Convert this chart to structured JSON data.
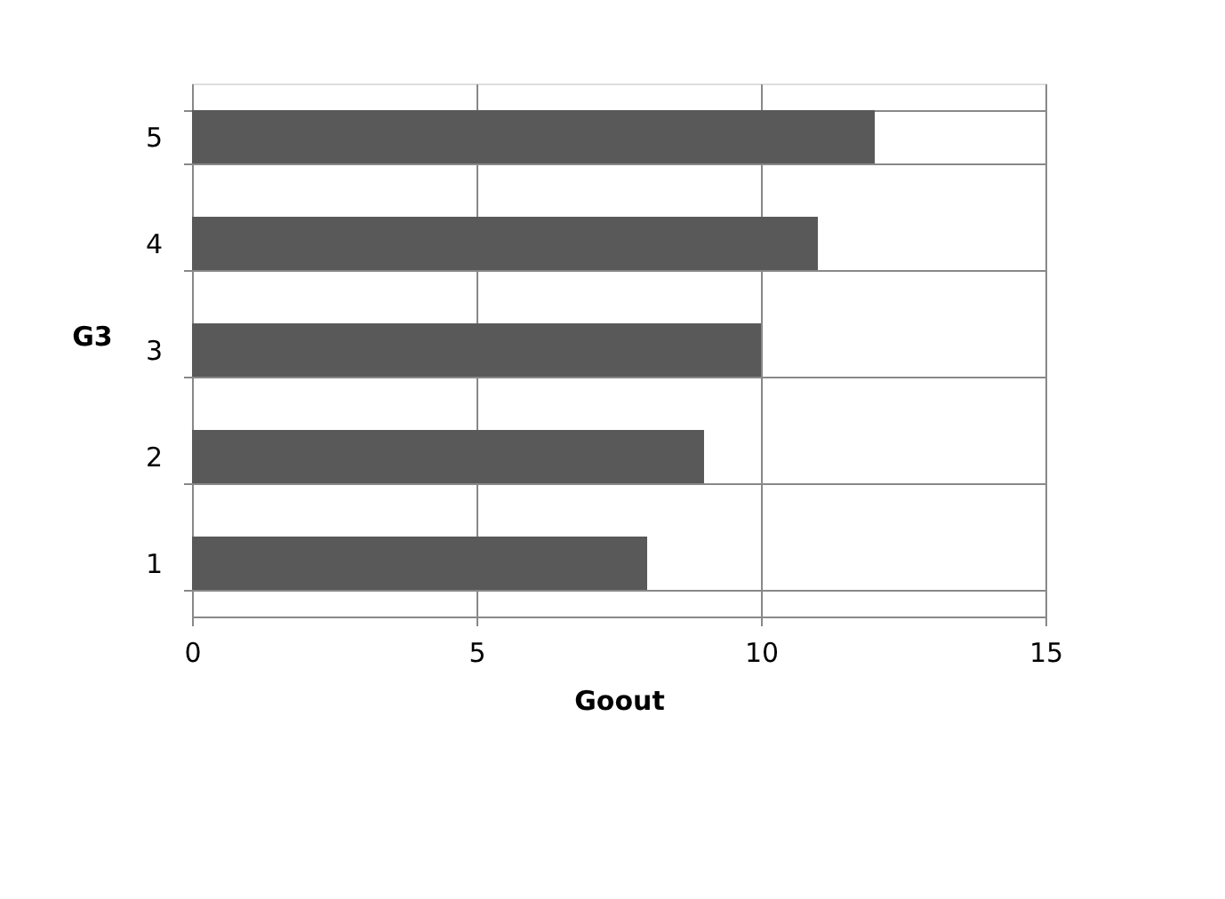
{
  "chart_data": {
    "type": "bar",
    "orientation": "horizontal",
    "categories": [
      "5",
      "4",
      "3",
      "2",
      "1"
    ],
    "values": [
      12,
      11,
      10,
      9,
      8
    ],
    "color": "#595959",
    "xlim": [
      0,
      15
    ],
    "xticks": [
      0,
      5,
      10,
      15
    ],
    "xlabel": "Goout",
    "ylabel": "G3",
    "grid": true
  }
}
